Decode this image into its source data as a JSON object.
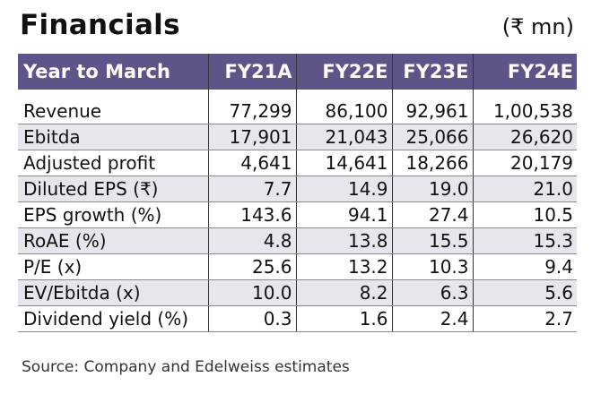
{
  "title": "Financials",
  "unit": "(₹ mn)",
  "table": {
    "headers": [
      "Year to March",
      "FY21A",
      "FY22E",
      "FY23E",
      "FY24E"
    ],
    "rows": [
      [
        "Revenue",
        "77,299",
        "86,100",
        "92,961",
        "1,00,538"
      ],
      [
        "Ebitda",
        "17,901",
        "21,043",
        "25,066",
        "26,620"
      ],
      [
        "Adjusted profit",
        "4,641",
        "14,641",
        "18,266",
        "20,179"
      ],
      [
        "Diluted EPS (₹)",
        "7.7",
        "14.9",
        "19.0",
        "21.0"
      ],
      [
        "EPS growth (%)",
        "143.6",
        "94.1",
        "27.4",
        "10.5"
      ],
      [
        "RoAE (%)",
        "4.8",
        "13.8",
        "15.5",
        "15.3"
      ],
      [
        "P/E (x)",
        "25.6",
        "13.2",
        "10.3",
        "9.4"
      ],
      [
        "EV/Ebitda (x)",
        "10.0",
        "8.2",
        "6.3",
        "5.6"
      ],
      [
        "Dividend yield (%)",
        "0.3",
        "1.6",
        "2.4",
        "2.7"
      ]
    ]
  },
  "source": "Source: Company and Edelweiss estimates",
  "colors": {
    "header_bg": "#5f5487",
    "alt_row": "#e7e6ec"
  }
}
